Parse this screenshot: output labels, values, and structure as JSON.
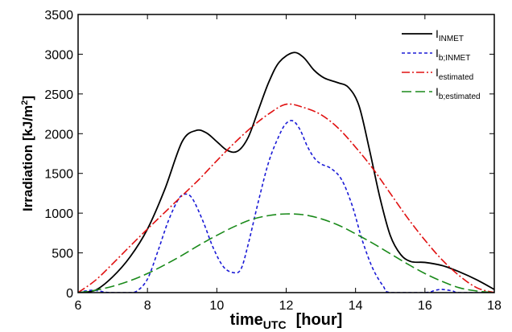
{
  "chart_data": {
    "type": "line",
    "xlabel": {
      "main": "time",
      "sub": "UTC",
      "unit": "[hour]"
    },
    "ylabel": {
      "main": "Irradiation [kJ/m",
      "sup": "2",
      "end": "]"
    },
    "xlim": [
      6,
      18
    ],
    "ylim": [
      0,
      3500
    ],
    "xticks": [
      6,
      8,
      10,
      12,
      14,
      16,
      18
    ],
    "yticks": [
      0,
      500,
      1000,
      1500,
      2000,
      2500,
      3000,
      3500
    ],
    "grid": false,
    "legend_position": "top-right",
    "series": [
      {
        "name": "I",
        "name_sub": "INMET",
        "color": "#000000",
        "dash": "solid",
        "x": [
          6.0,
          6.5,
          7.0,
          7.5,
          8.0,
          8.5,
          9.0,
          9.4,
          9.7,
          10.0,
          10.3,
          10.6,
          10.9,
          11.2,
          11.5,
          11.8,
          12.2,
          12.5,
          12.8,
          13.1,
          13.5,
          13.8,
          14.1,
          14.4,
          14.7,
          15.0,
          15.3,
          15.6,
          16.0,
          16.5,
          17.0,
          17.5,
          18.0
        ],
        "y": [
          0,
          30,
          200,
          450,
          800,
          1300,
          1900,
          2040,
          2010,
          1900,
          1790,
          1780,
          1950,
          2300,
          2650,
          2900,
          3020,
          2960,
          2800,
          2700,
          2640,
          2580,
          2350,
          1800,
          1200,
          720,
          480,
          390,
          380,
          340,
          260,
          160,
          40
        ]
      },
      {
        "name": "I",
        "name_sub": "b;INMET",
        "color": "#1a1ad6",
        "dash": "4,3",
        "x": [
          6.0,
          6.2,
          6.4,
          6.6,
          6.8,
          7.0,
          7.5,
          7.7,
          8.0,
          8.3,
          8.6,
          8.9,
          9.1,
          9.3,
          9.6,
          9.9,
          10.2,
          10.5,
          10.7,
          10.9,
          11.2,
          11.5,
          11.8,
          12.0,
          12.2,
          12.4,
          12.6,
          12.8,
          13.0,
          13.3,
          13.6,
          13.9,
          14.2,
          14.5,
          14.8,
          15.0,
          16.0,
          16.3,
          16.5,
          16.8,
          17.0,
          18.0
        ],
        "y": [
          0,
          20,
          30,
          20,
          5,
          0,
          0,
          20,
          170,
          520,
          900,
          1180,
          1240,
          1180,
          900,
          560,
          320,
          250,
          300,
          600,
          1150,
          1650,
          1980,
          2130,
          2160,
          2050,
          1850,
          1700,
          1620,
          1560,
          1420,
          1100,
          650,
          300,
          80,
          0,
          0,
          30,
          40,
          20,
          0,
          0
        ]
      },
      {
        "name": "I",
        "name_sub": "estimated",
        "color": "#e01010",
        "dash": "10,3,2,3",
        "x": [
          6.0,
          6.5,
          7.0,
          7.5,
          8.0,
          8.5,
          9.0,
          9.5,
          10.0,
          10.5,
          11.0,
          11.5,
          12.0,
          12.5,
          13.0,
          13.5,
          14.0,
          14.5,
          15.0,
          15.5,
          16.0,
          16.5,
          17.0,
          17.5,
          18.0
        ],
        "y": [
          0,
          155,
          365,
          585,
          800,
          1010,
          1220,
          1430,
          1660,
          1880,
          2080,
          2250,
          2370,
          2330,
          2240,
          2070,
          1830,
          1560,
          1250,
          940,
          660,
          410,
          210,
          60,
          0
        ]
      },
      {
        "name": "I",
        "name_sub": "b;estimated",
        "color": "#1a8a1a",
        "dash": "12,5",
        "x": [
          6.0,
          6.5,
          7.0,
          7.5,
          8.0,
          8.5,
          9.0,
          9.5,
          10.0,
          10.5,
          11.0,
          11.5,
          12.0,
          12.5,
          13.0,
          13.5,
          14.0,
          14.5,
          15.0,
          15.5,
          16.0,
          16.5,
          17.0,
          17.5,
          18.0
        ],
        "y": [
          0,
          30,
          80,
          150,
          240,
          350,
          470,
          600,
          720,
          830,
          920,
          970,
          990,
          980,
          930,
          850,
          740,
          620,
          490,
          360,
          240,
          140,
          60,
          20,
          0
        ]
      }
    ]
  }
}
